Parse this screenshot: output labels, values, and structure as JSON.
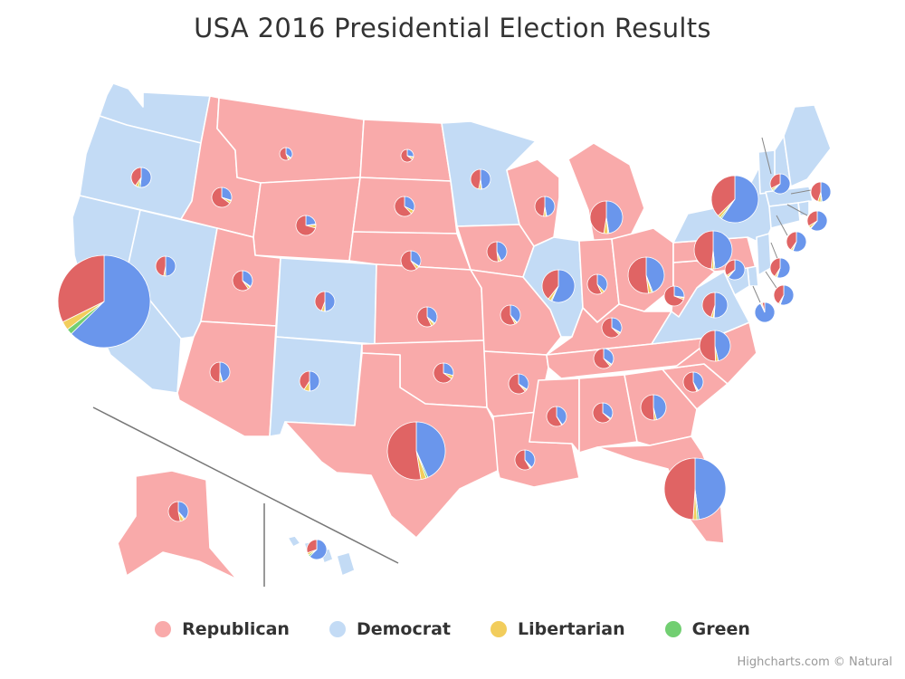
{
  "title": "USA 2016 Presidential Election Results",
  "credits": "Highcharts.com © Natural",
  "colors": {
    "rep_fill": "#f9aaaa",
    "dem_fill": "#c3dbf5",
    "rep_slice": "#e06464",
    "dem_slice": "#6a96ec",
    "lib_slice": "#f2cd5c",
    "green_slice": "#72cf72"
  },
  "legend": [
    {
      "label": "Republican",
      "color": "#f9aaaa"
    },
    {
      "label": "Democrat",
      "color": "#c3dbf5"
    },
    {
      "label": "Libertarian",
      "color": "#f2cd5c"
    },
    {
      "label": "Green",
      "color": "#72cf72"
    }
  ],
  "map_data": {
    "states": [
      {
        "name": "Washington",
        "winner": "dem",
        "rep": 38,
        "dem": 54,
        "lib": 5,
        "green": 2,
        "total": 3.3
      },
      {
        "name": "Oregon",
        "winner": "dem",
        "rep": 39,
        "dem": 50,
        "lib": 5,
        "green": 3,
        "total": 2.0
      },
      {
        "name": "California",
        "winner": "dem",
        "rep": 32,
        "dem": 62,
        "lib": 3,
        "green": 2,
        "total": 14.2
      },
      {
        "name": "Nevada",
        "winner": "dem",
        "rep": 45,
        "dem": 48,
        "lib": 3,
        "green": 0,
        "total": 1.1
      },
      {
        "name": "Idaho",
        "winner": "rep",
        "rep": 59,
        "dem": 27,
        "lib": 4,
        "green": 1,
        "total": 0.7
      },
      {
        "name": "Montana",
        "winner": "rep",
        "rep": 56,
        "dem": 36,
        "lib": 6,
        "green": 2,
        "total": 0.5
      },
      {
        "name": "Wyoming",
        "winner": "rep",
        "rep": 68,
        "dem": 22,
        "lib": 5,
        "green": 1,
        "total": 0.3
      },
      {
        "name": "Utah",
        "winner": "rep",
        "rep": 46,
        "dem": 27,
        "lib": 3,
        "green": 1,
        "total": 1.1
      },
      {
        "name": "Colorado",
        "winner": "dem",
        "rep": 43,
        "dem": 48,
        "lib": 5,
        "green": 1,
        "total": 2.8
      },
      {
        "name": "Arizona",
        "winner": "rep",
        "rep": 49,
        "dem": 45,
        "lib": 4,
        "green": 1,
        "total": 2.6
      },
      {
        "name": "New Mexico",
        "winner": "dem",
        "rep": 40,
        "dem": 48,
        "lib": 9,
        "green": 1,
        "total": 0.8
      },
      {
        "name": "North Dakota",
        "winner": "rep",
        "rep": 63,
        "dem": 27,
        "lib": 6,
        "green": 1,
        "total": 0.3
      },
      {
        "name": "South Dakota",
        "winner": "rep",
        "rep": 62,
        "dem": 32,
        "lib": 6,
        "green": 0,
        "total": 0.4
      },
      {
        "name": "Nebraska",
        "winner": "rep",
        "rep": 59,
        "dem": 34,
        "lib": 5,
        "green": 1,
        "total": 0.8
      },
      {
        "name": "Kansas",
        "winner": "rep",
        "rep": 57,
        "dem": 36,
        "lib": 5,
        "green": 2,
        "total": 1.2
      },
      {
        "name": "Oklahoma",
        "winner": "rep",
        "rep": 65,
        "dem": 29,
        "lib": 6,
        "green": 0,
        "total": 1.5
      },
      {
        "name": "Texas",
        "winner": "rep",
        "rep": 52,
        "dem": 43,
        "lib": 3,
        "green": 1,
        "total": 9.0
      },
      {
        "name": "Minnesota",
        "winner": "dem",
        "rep": 45,
        "dem": 46,
        "lib": 4,
        "green": 1,
        "total": 2.9
      },
      {
        "name": "Iowa",
        "winner": "rep",
        "rep": 51,
        "dem": 42,
        "lib": 4,
        "green": 1,
        "total": 1.6
      },
      {
        "name": "Missouri",
        "winner": "rep",
        "rep": 57,
        "dem": 38,
        "lib": 3,
        "green": 1,
        "total": 2.8
      },
      {
        "name": "Arkansas",
        "winner": "rep",
        "rep": 61,
        "dem": 34,
        "lib": 3,
        "green": 1,
        "total": 1.1
      },
      {
        "name": "Louisiana",
        "winner": "rep",
        "rep": 58,
        "dem": 38,
        "lib": 2,
        "green": 1,
        "total": 2.0
      },
      {
        "name": "Wisconsin",
        "winner": "rep",
        "rep": 47,
        "dem": 46,
        "lib": 4,
        "green": 1,
        "total": 3.0
      },
      {
        "name": "Illinois",
        "winner": "dem",
        "rep": 39,
        "dem": 56,
        "lib": 3,
        "green": 1,
        "total": 5.5
      },
      {
        "name": "Michigan",
        "winner": "rep",
        "rep": 47,
        "dem": 47,
        "lib": 4,
        "green": 1,
        "total": 4.8
      },
      {
        "name": "Indiana",
        "winner": "rep",
        "rep": 57,
        "dem": 38,
        "lib": 5,
        "green": 0,
        "total": 2.7
      },
      {
        "name": "Ohio",
        "winner": "rep",
        "rep": 52,
        "dem": 44,
        "lib": 3,
        "green": 1,
        "total": 5.5
      },
      {
        "name": "Kentucky",
        "winner": "rep",
        "rep": 63,
        "dem": 33,
        "lib": 3,
        "green": 1,
        "total": 1.9
      },
      {
        "name": "Tennessee",
        "winner": "rep",
        "rep": 61,
        "dem": 35,
        "lib": 3,
        "green": 1,
        "total": 2.5
      },
      {
        "name": "Mississippi",
        "winner": "rep",
        "rep": 58,
        "dem": 40,
        "lib": 1,
        "green": 0,
        "total": 1.2
      },
      {
        "name": "Alabama",
        "winner": "rep",
        "rep": 62,
        "dem": 34,
        "lib": 2,
        "green": 0,
        "total": 2.1
      },
      {
        "name": "Georgia",
        "winner": "rep",
        "rep": 51,
        "dem": 46,
        "lib": 3,
        "green": 0,
        "total": 4.1
      },
      {
        "name": "Florida",
        "winner": "rep",
        "rep": 49,
        "dem": 48,
        "lib": 2,
        "green": 1,
        "total": 9.4
      },
      {
        "name": "South Carolina",
        "winner": "rep",
        "rep": 55,
        "dem": 41,
        "lib": 2,
        "green": 1,
        "total": 2.1
      },
      {
        "name": "North Carolina",
        "winner": "rep",
        "rep": 50,
        "dem": 46,
        "lib": 3,
        "green": 0,
        "total": 4.7
      },
      {
        "name": "Virginia",
        "winner": "dem",
        "rep": 44,
        "dem": 50,
        "lib": 3,
        "green": 1,
        "total": 4.0
      },
      {
        "name": "West Virginia",
        "winner": "rep",
        "rep": 69,
        "dem": 27,
        "lib": 3,
        "green": 1,
        "total": 0.7
      },
      {
        "name": "Pennsylvania",
        "winner": "rep",
        "rep": 48,
        "dem": 48,
        "lib": 2,
        "green": 1,
        "total": 6.2
      },
      {
        "name": "New York",
        "winner": "dem",
        "rep": 37,
        "dem": 59,
        "lib": 2,
        "green": 1,
        "total": 7.7
      },
      {
        "name": "Vermont",
        "winner": "dem",
        "rep": 30,
        "dem": 57,
        "lib": 3,
        "green": 2,
        "total": 0.3
      },
      {
        "name": "New Hampshire",
        "winner": "dem",
        "rep": 47,
        "dem": 48,
        "lib": 4,
        "green": 1,
        "total": 0.7
      },
      {
        "name": "Maine",
        "winner": "dem",
        "rep": 45,
        "dem": 48,
        "lib": 5,
        "green": 2,
        "total": 0.7
      },
      {
        "name": "Massachusetts",
        "winner": "dem",
        "rep": 33,
        "dem": 60,
        "lib": 4,
        "green": 1,
        "total": 3.3
      },
      {
        "name": "Rhode Island",
        "winner": "dem",
        "rep": 39,
        "dem": 54,
        "lib": 3,
        "green": 1,
        "total": 0.5
      },
      {
        "name": "Connecticut",
        "winner": "dem",
        "rep": 41,
        "dem": 55,
        "lib": 3,
        "green": 1,
        "total": 1.6
      },
      {
        "name": "New Jersey",
        "winner": "dem",
        "rep": 41,
        "dem": 55,
        "lib": 2,
        "green": 1,
        "total": 3.9
      },
      {
        "name": "Delaware",
        "winner": "dem",
        "rep": 42,
        "dem": 53,
        "lib": 3,
        "green": 1,
        "total": 0.4
      },
      {
        "name": "Maryland",
        "winner": "dem",
        "rep": 34,
        "dem": 60,
        "lib": 3,
        "green": 1,
        "total": 2.8
      },
      {
        "name": "District of Columbia",
        "winner": "dem",
        "rep": 4,
        "dem": 91,
        "lib": 2,
        "green": 1,
        "total": 0.3
      },
      {
        "name": "Alaska",
        "winner": "rep",
        "rep": 51,
        "dem": 37,
        "lib": 6,
        "green": 2,
        "total": 0.3
      },
      {
        "name": "Hawaii",
        "winner": "dem",
        "rep": 30,
        "dem": 62,
        "lib": 4,
        "green": 3,
        "total": 0.4
      }
    ]
  }
}
